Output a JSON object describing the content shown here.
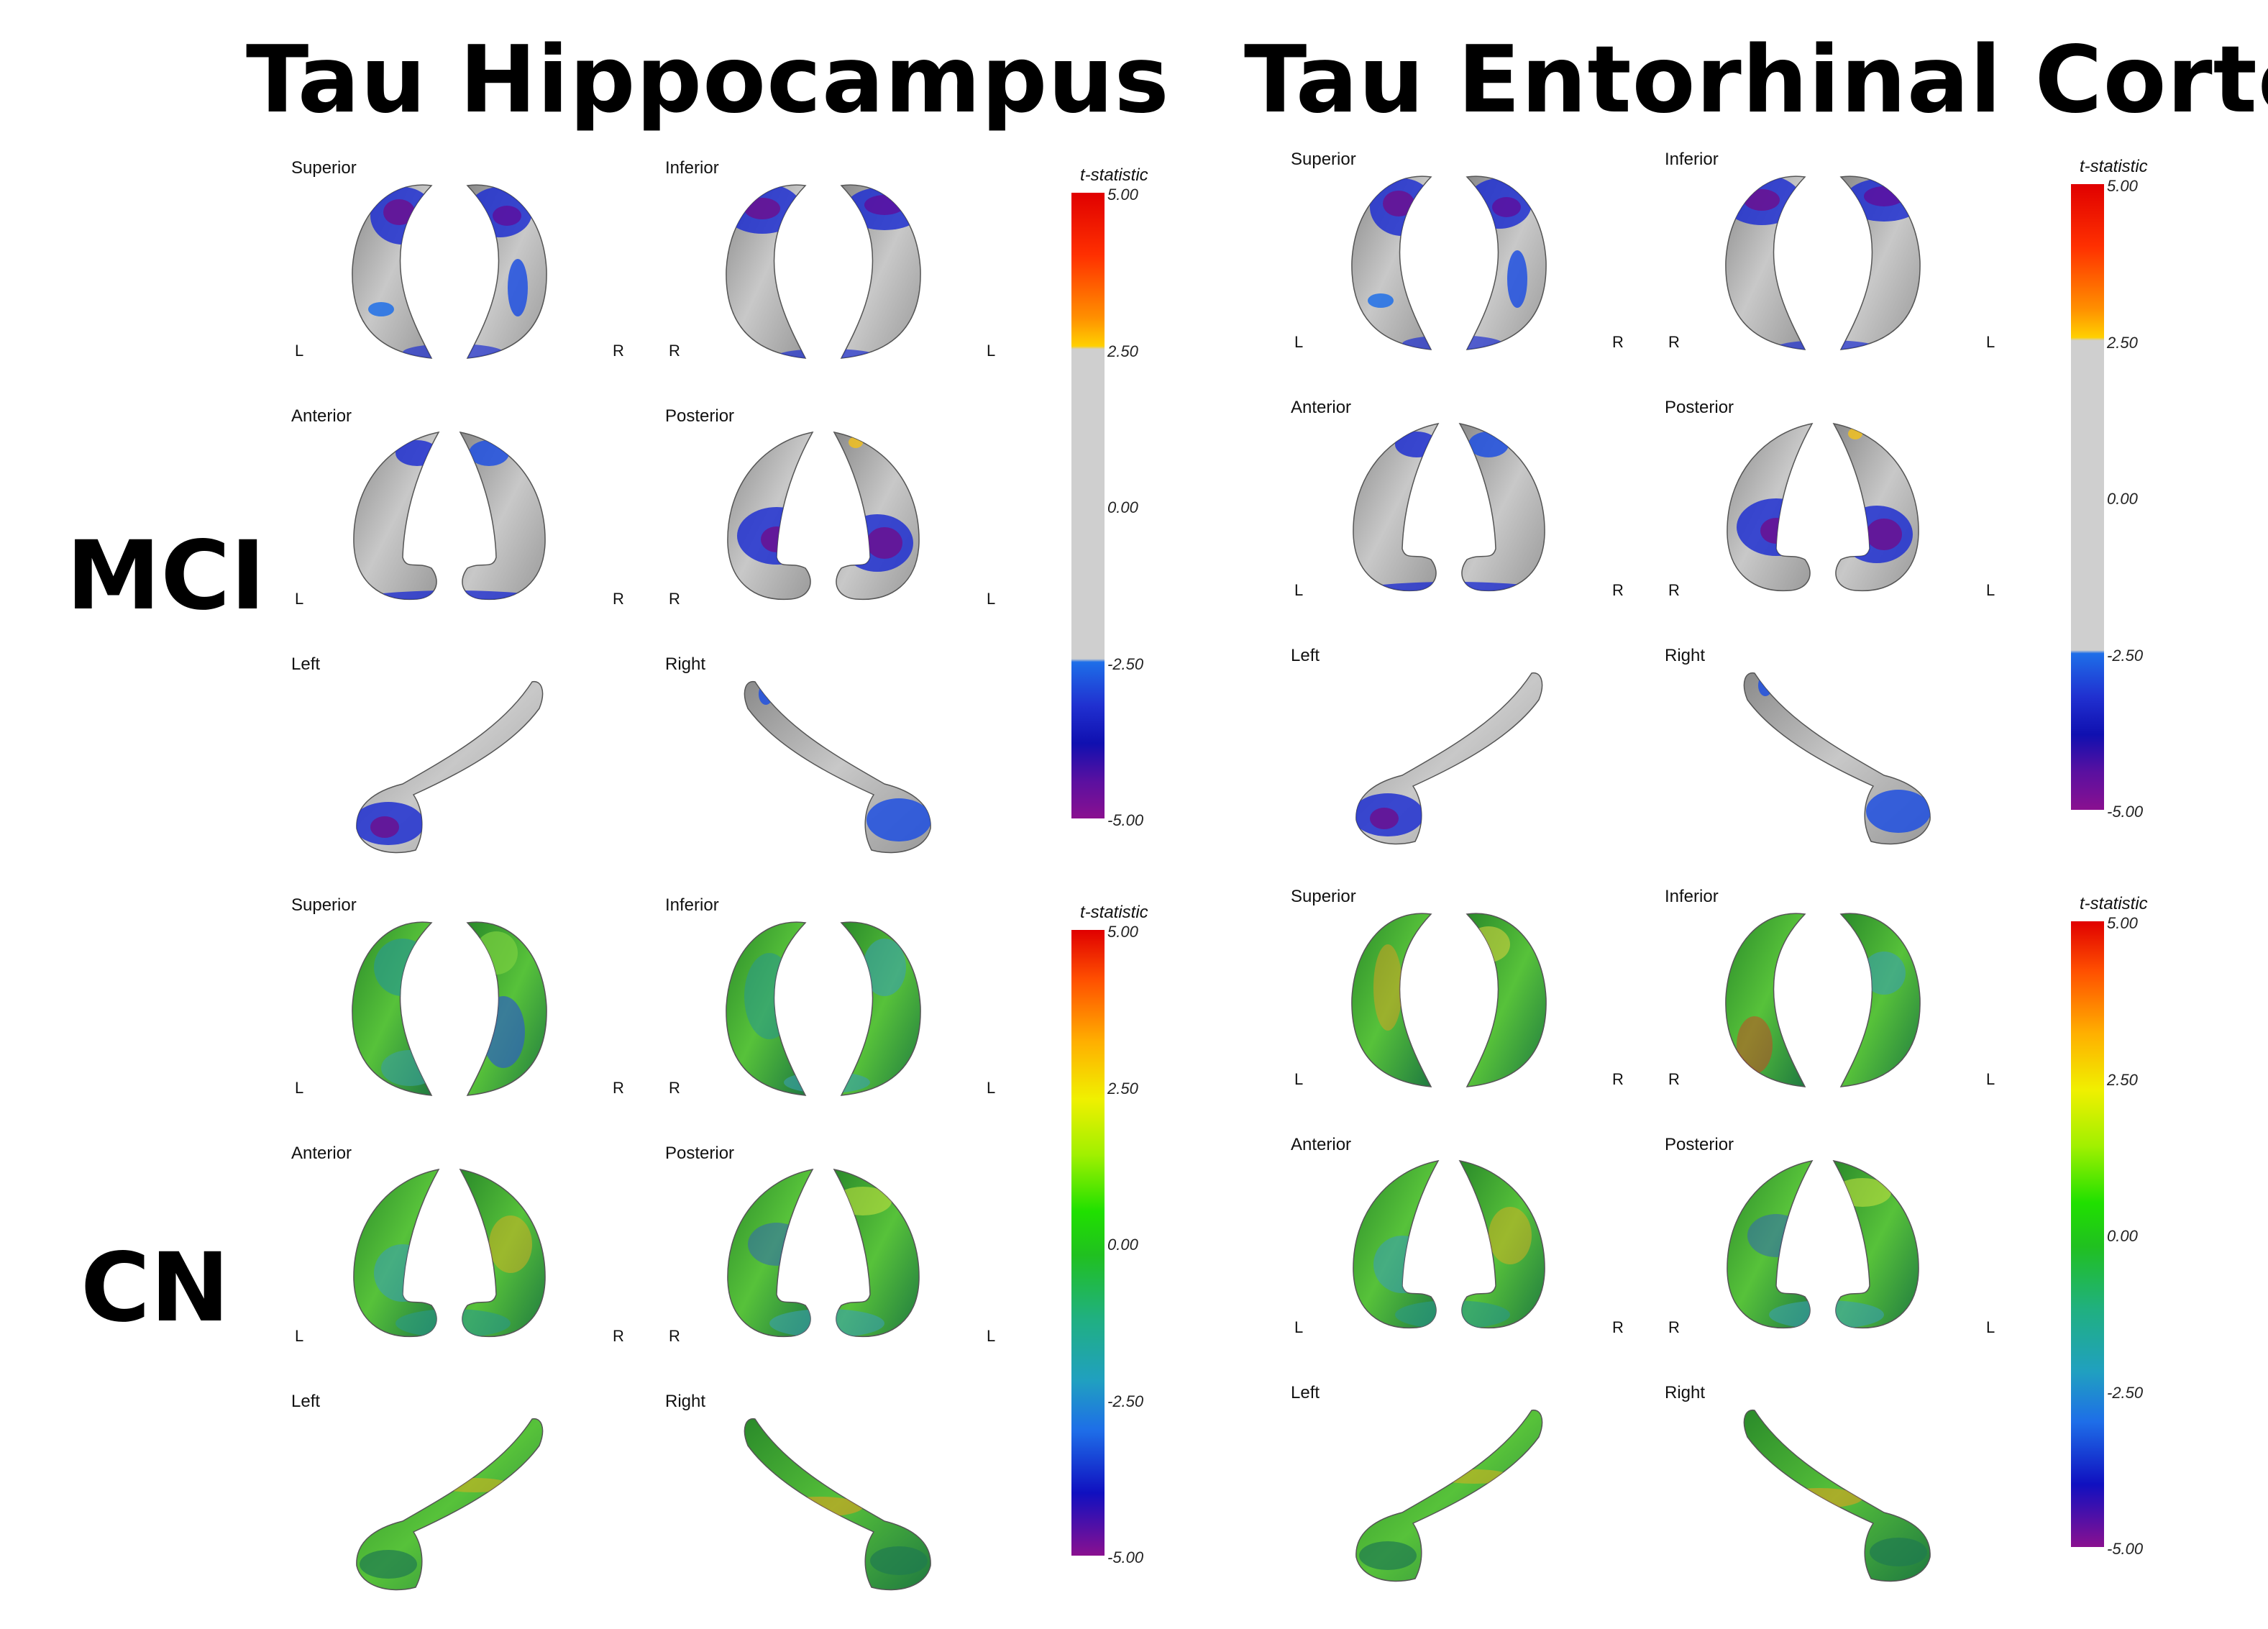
{
  "columns": [
    {
      "title": "Tau Hippocampus"
    },
    {
      "title": "Tau Entorhinal Cortex"
    }
  ],
  "rows": [
    {
      "label": "MCI"
    },
    {
      "label": "CN"
    }
  ],
  "views": {
    "superior": "Superior",
    "inferior": "Inferior",
    "anterior": "Anterior",
    "posterior": "Posterior",
    "left": "Left",
    "right": "Right"
  },
  "sides": {
    "L": "L",
    "R": "R"
  },
  "colorbar": {
    "title": "t-statistic",
    "ticks": [
      "5.00",
      "2.50",
      "0.00",
      "-2.50",
      "-5.00"
    ]
  }
}
